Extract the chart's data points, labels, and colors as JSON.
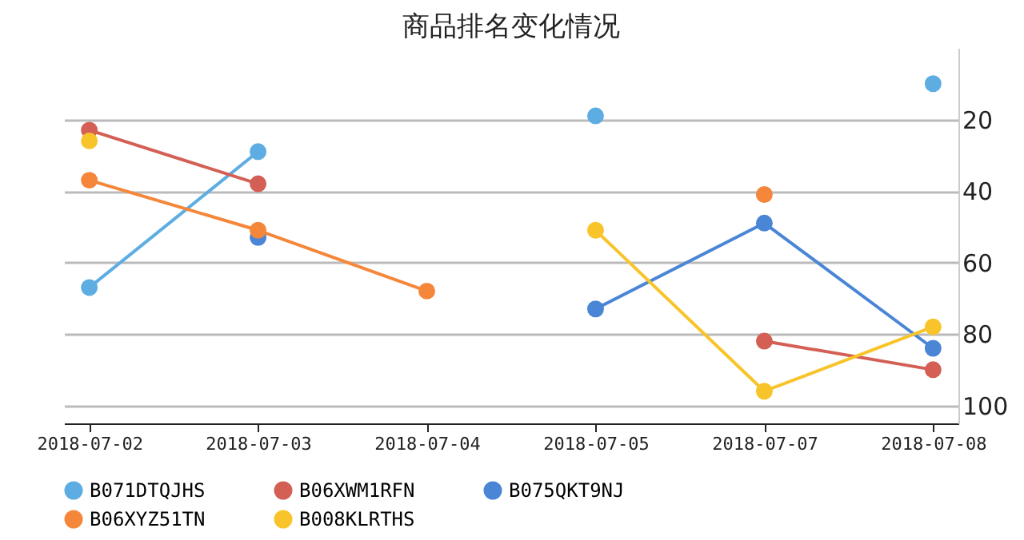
{
  "chart_data": {
    "type": "line",
    "title": "商品排名变化情况",
    "categories": [
      "2018-07-02",
      "2018-07-03",
      "2018-07-04",
      "2018-07-05",
      "2018-07-07",
      "2018-07-08"
    ],
    "series": [
      {
        "name": "B071DTQJHS",
        "color": "#5dade2",
        "values": [
          67,
          29,
          null,
          19,
          null,
          10
        ]
      },
      {
        "name": "B06XWM1RFN",
        "color": "#d35f55",
        "values": [
          23,
          38,
          null,
          null,
          82,
          90
        ]
      },
      {
        "name": "B075QKT9NJ",
        "color": "#4a85d6",
        "values": [
          null,
          53,
          null,
          73,
          49,
          84
        ]
      },
      {
        "name": "B06XYZ51TN",
        "color": "#f5873b",
        "values": [
          37,
          51,
          68,
          null,
          41,
          null
        ]
      },
      {
        "name": "B008KLRTHS",
        "color": "#f8c42a",
        "values": [
          26,
          null,
          null,
          51,
          96,
          78
        ]
      }
    ],
    "ylim": [
      105,
      0
    ],
    "yticks": [
      20,
      40,
      60,
      80,
      100
    ],
    "grid": "y",
    "legend": "bottom",
    "marker": "circle",
    "line_style": "solid"
  }
}
